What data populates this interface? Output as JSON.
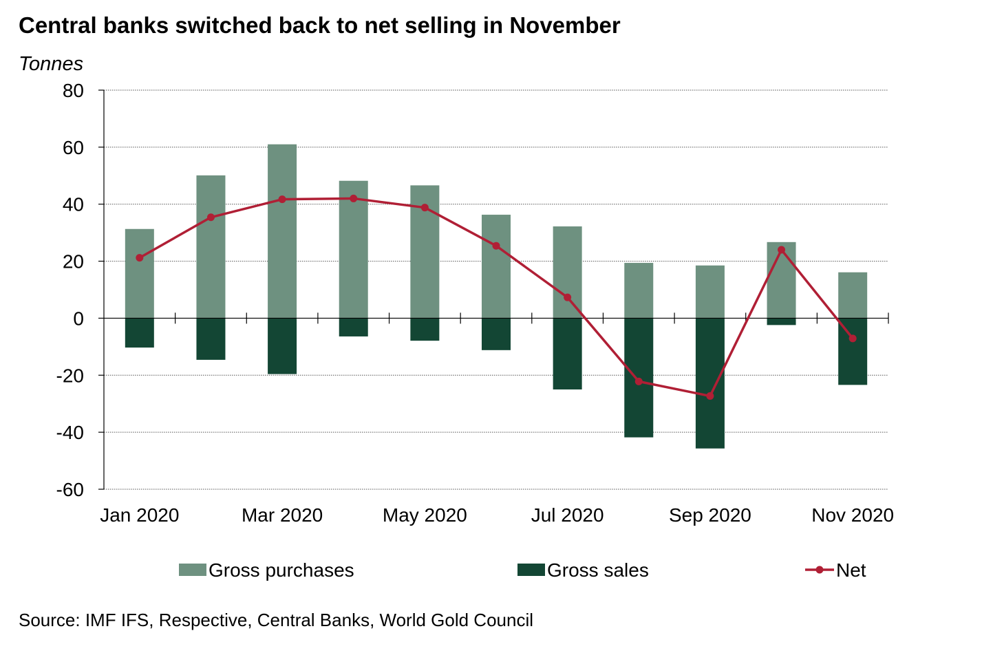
{
  "title": "Central banks switched back to net selling in November",
  "unit_label": "Tonnes",
  "source": "Source: IMF IFS, Respective, Central Banks, World Gold Council",
  "colors": {
    "gross_purchases": "#6e9180",
    "gross_sales": "#134634",
    "net": "#b01f35",
    "grid": "#555555",
    "axis": "#000000"
  },
  "chart_data": {
    "type": "bar",
    "categories": [
      "Jan 2020",
      "Feb 2020",
      "Mar 2020",
      "Apr 2020",
      "May 2020",
      "Jun 2020",
      "Jul 2020",
      "Aug 2020",
      "Sep 2020",
      "Oct 2020",
      "Nov 2020"
    ],
    "x_tick_labels": [
      "Jan 2020",
      "",
      "Mar 2020",
      "",
      "May 2020",
      "",
      "Jul 2020",
      "",
      "Sep 2020",
      "",
      "Nov 2020"
    ],
    "ylim": [
      -60,
      80
    ],
    "y_ticks": [
      80,
      60,
      40,
      20,
      0,
      -20,
      -40,
      -60
    ],
    "grid": true,
    "legend_position": "bottom",
    "series": [
      {
        "name": "Gross purchases",
        "type": "bar",
        "values": [
          31.3,
          50.1,
          61.0,
          48.2,
          46.6,
          36.3,
          32.2,
          19.4,
          18.5,
          26.7,
          16.1
        ]
      },
      {
        "name": "Gross sales",
        "type": "bar",
        "values": [
          -10.3,
          -14.6,
          -19.6,
          -6.4,
          -7.9,
          -11.2,
          -25.0,
          -41.8,
          -45.7,
          -2.4,
          -23.4
        ]
      },
      {
        "name": "Net",
        "type": "line",
        "values": [
          21.2,
          35.4,
          41.7,
          42.0,
          38.8,
          25.4,
          7.3,
          -22.2,
          -27.3,
          24.0,
          -7.1
        ]
      }
    ]
  }
}
